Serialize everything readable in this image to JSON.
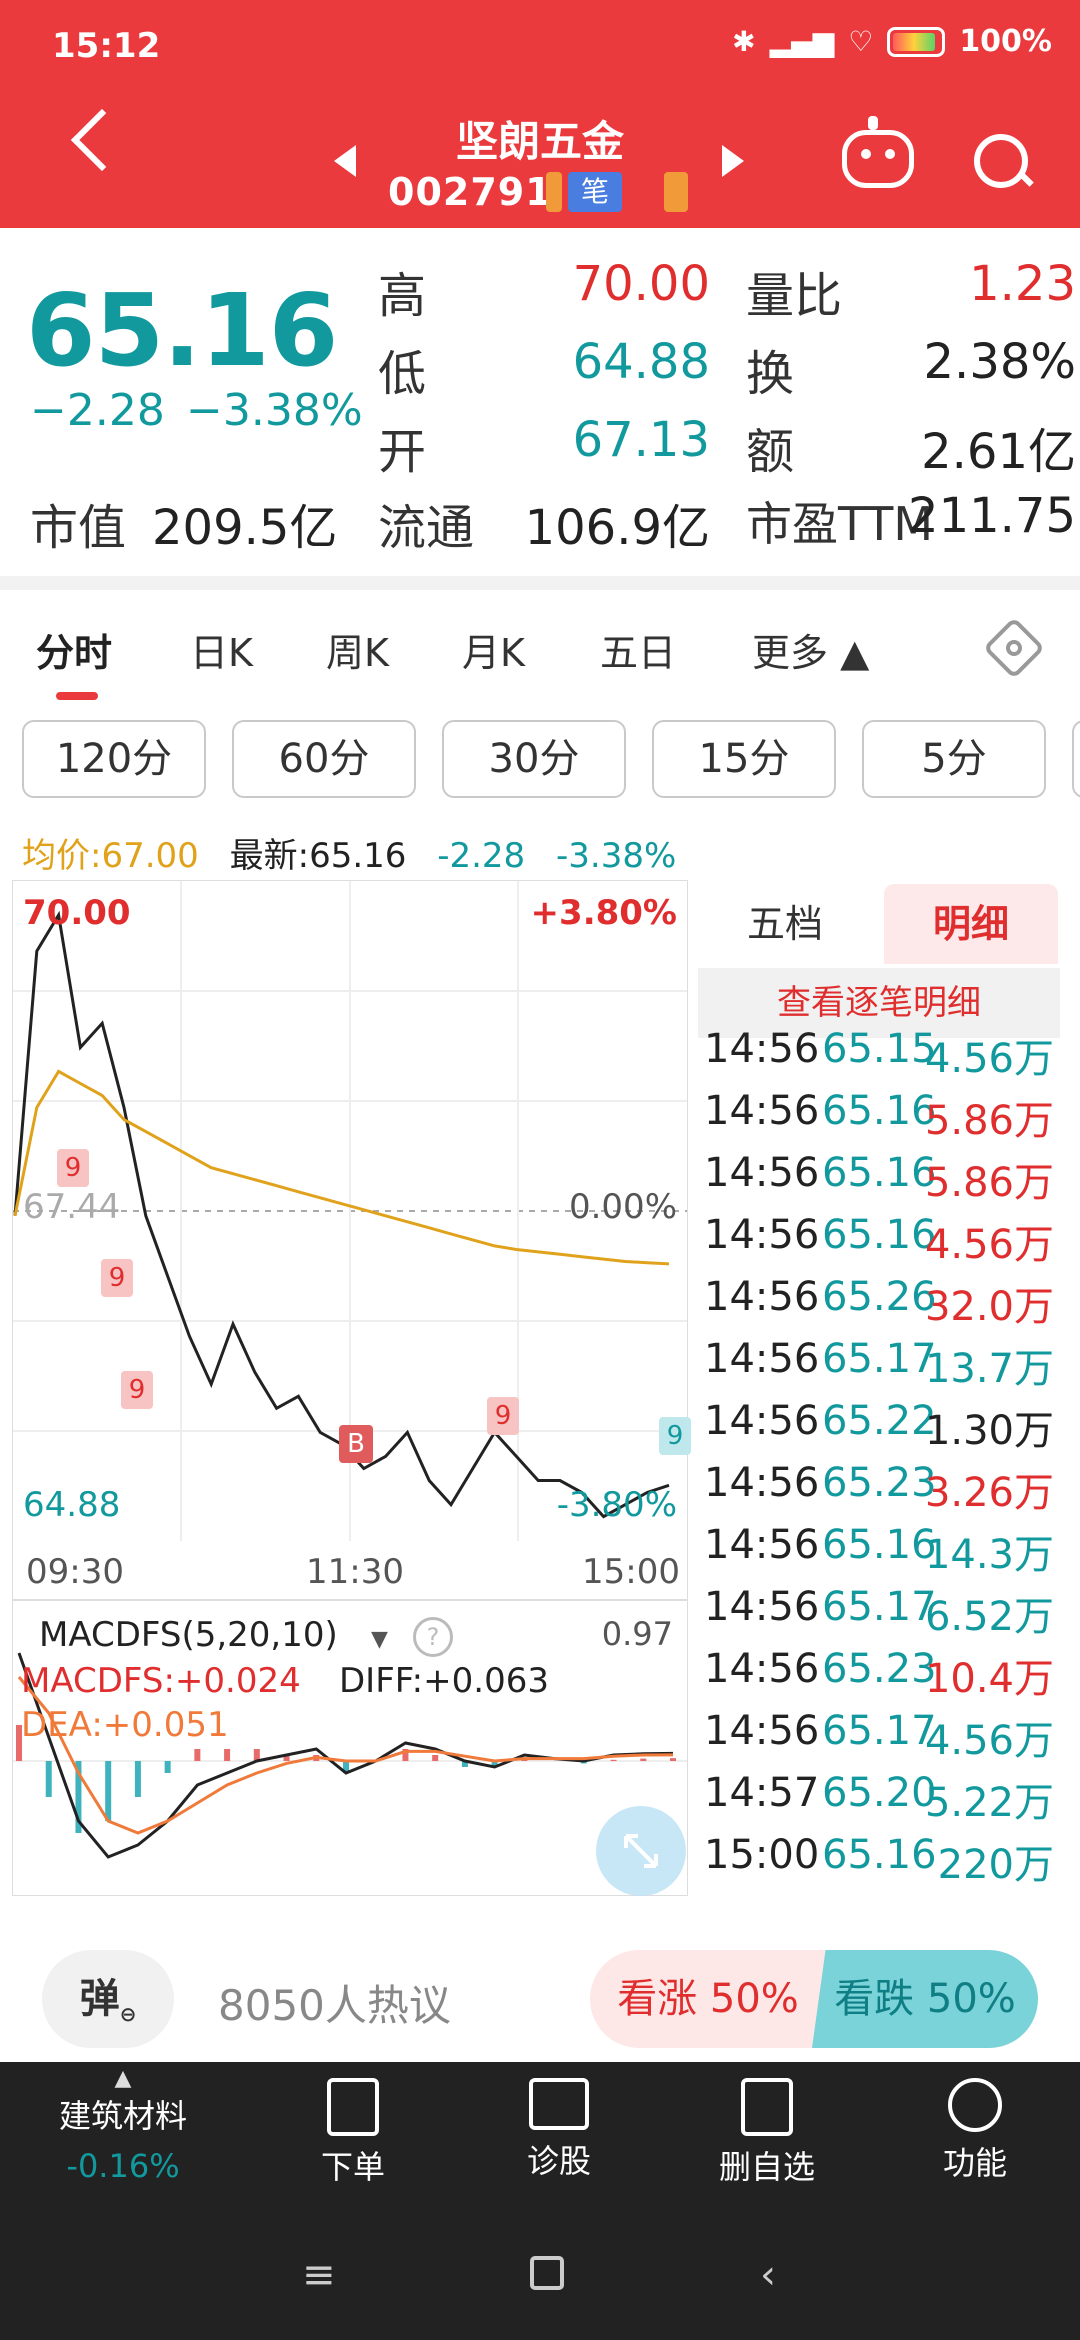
{
  "status_bar": {
    "time": "15:12",
    "battery": "100%"
  },
  "header": {
    "stock_name": "坚朗五金",
    "stock_code": "002791",
    "tag_bi": "笔"
  },
  "quote": {
    "price": "65.16",
    "change": "−2.28",
    "change_pct": "−3.38%",
    "high_label": "高",
    "high": "70.00",
    "low_label": "低",
    "low": "64.88",
    "open_label": "开",
    "open": "67.13",
    "vol_ratio_label": "量比",
    "vol_ratio": "1.23",
    "turnover_label": "换",
    "turnover": "2.38%",
    "amount_label": "额",
    "amount": "2.61亿",
    "mktcap_label": "市值",
    "mktcap": "209.5亿",
    "float_label": "流通",
    "float": "106.9亿",
    "pe_label": "市盈TTM",
    "pe": "211.75"
  },
  "tabs": [
    "分时",
    "日K",
    "周K",
    "月K",
    "五日",
    "更多 ▲"
  ],
  "periods": [
    "120分",
    "60分",
    "30分",
    "15分",
    "5分"
  ],
  "infoline": {
    "avg": "均价:67.00",
    "latest": "最新:65.16",
    "chg": "-2.28",
    "pct": "-3.38%"
  },
  "chart": {
    "top_price": "70.00",
    "top_pct": "+3.80%",
    "mid_price": "67.44",
    "mid_pct": "0.00%",
    "bottom_price": "64.88",
    "bottom_pct": "-3.80%",
    "times": [
      "09:30",
      "11:30",
      "15:00"
    ],
    "marker_9": "9",
    "marker_b": "B"
  },
  "chart_data": {
    "type": "line",
    "title": "",
    "x_range": [
      "09:30",
      "15:00"
    ],
    "ylim": [
      64.88,
      70.0
    ],
    "series": [
      {
        "name": "最新",
        "color": "#222222",
        "values": [
          67.4,
          69.6,
          69.9,
          68.8,
          69.0,
          68.3,
          67.4,
          66.9,
          66.4,
          66.0,
          66.5,
          66.1,
          65.8,
          65.9,
          65.6,
          65.5,
          65.3,
          65.4,
          65.6,
          65.2,
          65.0,
          65.3,
          65.6,
          65.4,
          65.2,
          65.2,
          65.1,
          64.9,
          65.0,
          65.1,
          65.16
        ]
      },
      {
        "name": "均价",
        "color": "#e0a21a",
        "values": [
          67.4,
          68.3,
          68.6,
          68.5,
          68.4,
          68.2,
          68.1,
          68.0,
          67.9,
          67.8,
          67.75,
          67.7,
          67.65,
          67.6,
          67.55,
          67.5,
          67.45,
          67.4,
          67.35,
          67.3,
          67.25,
          67.2,
          67.15,
          67.12,
          67.1,
          67.08,
          67.06,
          67.04,
          67.02,
          67.01,
          67.0
        ]
      }
    ]
  },
  "macd": {
    "title": "MACDFS(5,20,10)",
    "right": "0.97",
    "macdfs": "MACDFS:+0.024",
    "diff": "DIFF:+0.063",
    "dea": "DEA:+0.051"
  },
  "macd_data": {
    "diff": [
      0.9,
      0.2,
      -0.5,
      -0.8,
      -0.7,
      -0.5,
      -0.2,
      -0.1,
      0.0,
      0.05,
      0.1,
      -0.1,
      0.0,
      0.15,
      0.1,
      0.0,
      -0.05,
      0.05,
      0.02,
      0.0,
      0.05,
      0.06,
      0.063
    ],
    "dea": [
      0.7,
      0.4,
      -0.1,
      -0.5,
      -0.6,
      -0.5,
      -0.35,
      -0.2,
      -0.1,
      -0.02,
      0.03,
      0.0,
      0.0,
      0.08,
      0.08,
      0.04,
      0.0,
      0.02,
      0.02,
      0.02,
      0.04,
      0.05,
      0.051
    ],
    "hist": [
      0.3,
      -0.3,
      -0.6,
      -0.5,
      -0.3,
      -0.1,
      0.1,
      0.1,
      0.1,
      0.05,
      0.05,
      -0.1,
      0.0,
      0.1,
      0.05,
      -0.05,
      -0.05,
      0.03,
      0.0,
      -0.02,
      0.01,
      0.02,
      0.024
    ]
  },
  "detail": {
    "seg_wudang": "五档",
    "seg_mingxi": "明细",
    "view_all": "查看逐笔明细",
    "rows": [
      {
        "time": "14:56",
        "price": "65.15",
        "vol": "4.56万",
        "color": "#12999e"
      },
      {
        "time": "14:56",
        "price": "65.16",
        "vol": "5.86万",
        "color": "#e02e2e"
      },
      {
        "time": "14:56",
        "price": "65.16",
        "vol": "5.86万",
        "color": "#e02e2e"
      },
      {
        "time": "14:56",
        "price": "65.16",
        "vol": "4.56万",
        "color": "#e02e2e"
      },
      {
        "time": "14:56",
        "price": "65.26",
        "vol": "32.0万",
        "color": "#e02e2e"
      },
      {
        "time": "14:56",
        "price": "65.17",
        "vol": "13.7万",
        "color": "#12999e"
      },
      {
        "time": "14:56",
        "price": "65.22",
        "vol": "1.30万",
        "color": "#222222"
      },
      {
        "time": "14:56",
        "price": "65.23",
        "vol": "3.26万",
        "color": "#e02e2e"
      },
      {
        "time": "14:56",
        "price": "65.16",
        "vol": "14.3万",
        "color": "#12999e"
      },
      {
        "time": "14:56",
        "price": "65.17",
        "vol": "6.52万",
        "color": "#12999e"
      },
      {
        "time": "14:56",
        "price": "65.23",
        "vol": "10.4万",
        "color": "#e02e2e"
      },
      {
        "time": "14:56",
        "price": "65.17",
        "vol": "4.56万",
        "color": "#12999e"
      },
      {
        "time": "14:57",
        "price": "65.20",
        "vol": "5.22万",
        "color": "#12999e"
      },
      {
        "time": "15:00",
        "price": "65.16",
        "vol": "220万",
        "color": "#12999e"
      }
    ]
  },
  "social": {
    "danmu": "弹",
    "heat": "8050人热议",
    "bull": "看涨 50%",
    "bear": "看跌 50%"
  },
  "bottom_nav": {
    "sector_name": "建筑材料",
    "sector_pct": "-0.16%",
    "items": [
      "下单",
      "诊股",
      "删自选",
      "功能"
    ]
  },
  "colors": {
    "brand_red": "#ea3a3e",
    "down": "#12999e",
    "up": "#e02e2e",
    "avg": "#e0a21a"
  }
}
